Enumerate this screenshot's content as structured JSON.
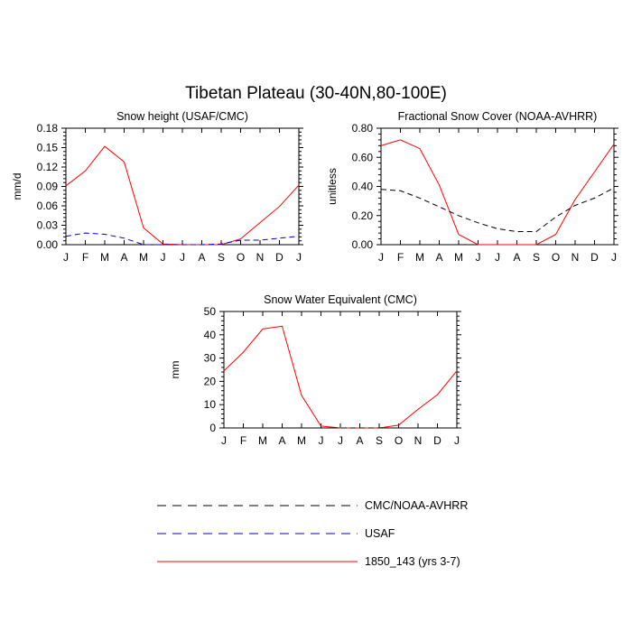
{
  "figure": {
    "title": "Tibetan Plateau (30-40N,80-100E)"
  },
  "chart_data": [
    {
      "type": "line",
      "title": "Snow height (USAF/CMC)",
      "xlabel": "",
      "ylabel": "mm/d",
      "categories": [
        "J",
        "F",
        "M",
        "A",
        "M",
        "J",
        "J",
        "A",
        "S",
        "O",
        "N",
        "D",
        "J"
      ],
      "y_ticks": [
        "0.00",
        "0.03",
        "0.06",
        "0.09",
        "0.12",
        "0.15",
        "0.18"
      ],
      "ylim": [
        0,
        0.18
      ],
      "series": [
        {
          "name": "1850_143 (yrs 3-7)",
          "color": "#ff0000",
          "dash": "solid",
          "values": [
            0.091,
            0.114,
            0.152,
            0.128,
            0.026,
            0.001,
            0.0,
            0.0,
            0.0,
            0.009,
            0.034,
            0.059,
            0.092
          ]
        },
        {
          "name": "USAF",
          "color": "#0000cc",
          "dash": "dashed",
          "values": [
            0.013,
            0.018,
            0.016,
            0.01,
            0.0,
            0.0,
            0.0,
            0.0,
            0.001,
            0.007,
            0.007,
            0.01,
            0.013
          ]
        }
      ]
    },
    {
      "type": "line",
      "title": "Fractional Snow Cover (NOAA-AVHRR)",
      "xlabel": "",
      "ylabel": "unitless",
      "categories": [
        "J",
        "F",
        "M",
        "A",
        "M",
        "J",
        "J",
        "A",
        "S",
        "O",
        "N",
        "D",
        "J"
      ],
      "y_ticks": [
        "0.00",
        "0.20",
        "0.40",
        "0.60",
        "0.80"
      ],
      "ylim": [
        0,
        0.8
      ],
      "series": [
        {
          "name": "1850_143 (yrs 3-7)",
          "color": "#ff0000",
          "dash": "solid",
          "values": [
            0.68,
            0.72,
            0.66,
            0.41,
            0.07,
            0.0,
            0.0,
            0.0,
            0.0,
            0.07,
            0.31,
            0.5,
            0.69
          ]
        },
        {
          "name": "CMC/NOAA-AVHRR",
          "color": "#000000",
          "dash": "dashed",
          "values": [
            0.38,
            0.37,
            0.32,
            0.26,
            0.2,
            0.15,
            0.11,
            0.09,
            0.09,
            0.19,
            0.27,
            0.32,
            0.39
          ]
        }
      ]
    },
    {
      "type": "line",
      "title": "Snow Water Equivalent (CMC)",
      "xlabel": "",
      "ylabel": "mm",
      "categories": [
        "J",
        "F",
        "M",
        "A",
        "M",
        "J",
        "J",
        "A",
        "S",
        "O",
        "N",
        "D",
        "J"
      ],
      "y_ticks": [
        "0",
        "10",
        "20",
        "30",
        "40",
        "50"
      ],
      "ylim": [
        0,
        50
      ],
      "series": [
        {
          "name": "1850_143 (yrs 3-7)",
          "color": "#ff0000",
          "dash": "solid",
          "values": [
            24.5,
            32.5,
            42.5,
            43.7,
            14,
            0.8,
            0,
            0,
            0,
            1.2,
            8,
            14.3,
            24.5
          ]
        },
        {
          "name": "CMC",
          "color": "#000000",
          "dash": "dashed",
          "values": [
            0,
            0,
            0,
            0,
            0,
            0,
            0,
            0,
            0,
            0,
            0,
            0,
            0
          ]
        }
      ]
    }
  ],
  "legend": [
    {
      "label": "CMC/NOAA-AVHRR",
      "color": "#000000",
      "dash": "dashed"
    },
    {
      "label": "USAF",
      "color": "#0000cc",
      "dash": "dashed"
    },
    {
      "label": "1850_143 (yrs 3-7)",
      "color": "#ff0000",
      "dash": "solid"
    }
  ]
}
